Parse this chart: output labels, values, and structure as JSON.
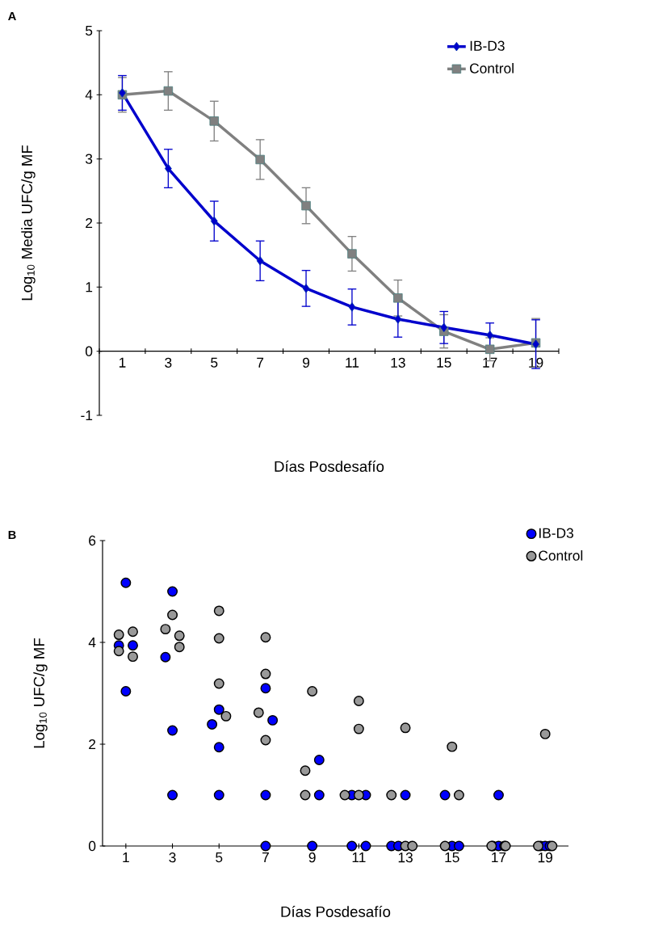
{
  "chart_data": [
    {
      "type": "line",
      "annotations": [
        "A"
      ],
      "xlabel": "Días Posdesafío",
      "ylabel": "Log$_{10}$ Media UFC/g MF",
      "categories": [
        "1",
        "3",
        "5",
        "7",
        "9",
        "11",
        "13",
        "15",
        "17",
        "19"
      ],
      "ylim": [
        -1,
        5
      ],
      "yticks": [
        -1,
        0,
        1,
        2,
        3,
        4,
        5
      ],
      "legend": "top right",
      "series": [
        {
          "name": "IB-D3",
          "color": "#0000cc",
          "marker": "diamond",
          "values": [
            4.03,
            2.85,
            2.03,
            1.41,
            0.98,
            0.69,
            0.5,
            0.37,
            0.25,
            0.11
          ],
          "errors": [
            0.27,
            0.3,
            0.31,
            0.31,
            0.28,
            0.28,
            0.28,
            0.25,
            0.19,
            0.38
          ]
        },
        {
          "name": "Control",
          "color": "#808080",
          "marker": "square",
          "values": [
            4.0,
            4.06,
            3.59,
            2.99,
            2.27,
            1.52,
            0.83,
            0.31,
            0.03,
            0.13
          ],
          "errors": [
            0.27,
            0.3,
            0.31,
            0.31,
            0.28,
            0.27,
            0.28,
            0.26,
            0.18,
            0.38
          ]
        }
      ]
    },
    {
      "type": "scatter",
      "annotations": [
        "B"
      ],
      "xlabel": "Días Posdesafío",
      "ylabel": "Log$_{10}$ UFC/g MF",
      "xlim": [
        0,
        20
      ],
      "xticks": [
        1,
        3,
        5,
        7,
        9,
        11,
        13,
        15,
        17,
        19
      ],
      "ylim": [
        0,
        6
      ],
      "yticks": [
        0,
        2,
        4,
        6
      ],
      "legend": "top right",
      "series": [
        {
          "name": "IB-D3",
          "color": "#0000ff",
          "marker": "circle",
          "x": [
            1,
            0.7,
            1.3,
            1,
            3,
            2.7,
            3,
            3,
            5,
            4.7,
            5,
            5,
            7,
            7.3,
            7,
            7,
            9.3,
            9.3,
            9,
            10.7,
            11.3,
            10.7,
            11.3,
            13,
            12.4,
            12.7,
            14.7,
            15,
            15.3,
            17,
            16.75,
            17,
            17.25,
            18.8,
            19,
            19.2
          ],
          "values": [
            5.17,
            3.94,
            3.94,
            3.04,
            5.0,
            3.71,
            2.27,
            1.0,
            2.68,
            2.39,
            1.94,
            1.0,
            3.1,
            2.47,
            1.0,
            0,
            1.69,
            1.0,
            0,
            1.0,
            1.0,
            0,
            0,
            1.0,
            0,
            0,
            1.0,
            0,
            0,
            1.0,
            0,
            0,
            0,
            0,
            0,
            0
          ]
        },
        {
          "name": "Control",
          "color": "#999999",
          "marker": "circle",
          "x": [
            0.7,
            0.7,
            1.3,
            1.3,
            2.7,
            3,
            3.3,
            3.3,
            5,
            5,
            5,
            5.3,
            7,
            7,
            6.7,
            7,
            9,
            8.7,
            8.7,
            11,
            11,
            10.4,
            11,
            13,
            12.4,
            13,
            13.3,
            15,
            15.3,
            14.7,
            16.7,
            17.3,
            19,
            18.7,
            19.3
          ],
          "values": [
            4.15,
            3.83,
            4.21,
            3.72,
            4.26,
            4.54,
            4.13,
            3.91,
            4.62,
            4.08,
            3.19,
            2.55,
            4.1,
            3.38,
            2.62,
            2.08,
            3.04,
            1.48,
            1.0,
            2.85,
            2.3,
            1.0,
            1.0,
            2.32,
            1.0,
            0,
            0,
            1.95,
            1.0,
            0,
            0,
            0,
            2.2,
            0,
            0
          ]
        }
      ]
    }
  ]
}
